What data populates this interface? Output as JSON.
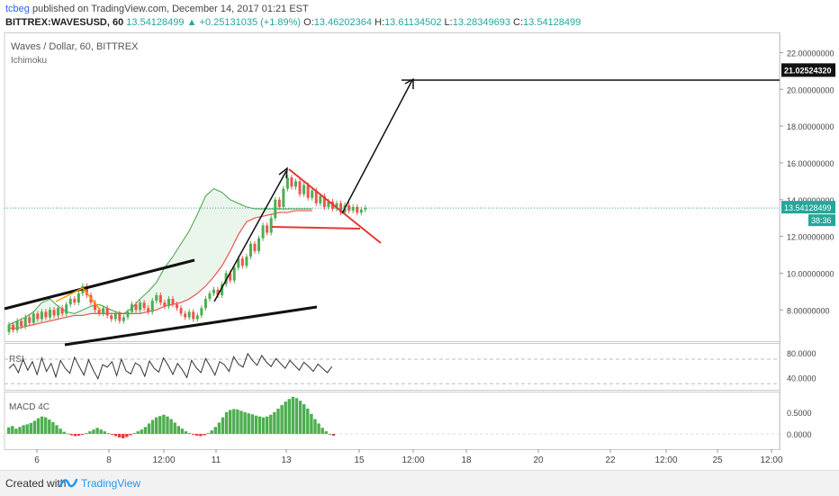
{
  "header": {
    "publisher_user": "tcbeg",
    "publisher_text": " published on TradingView.com, December 14, 2017 01:21 EST",
    "symbol": "BITTREX:WAVESUSD, 60",
    "last": "13.54128499",
    "change": "+0.25131035 (+1.89%)",
    "o_label": "O:",
    "o_value": "13.46202364",
    "h_label": "H:",
    "h_value": "13.61134502",
    "l_label": "L:",
    "l_value": "13.28349693",
    "c_label": "C:",
    "c_value": "13.54128499"
  },
  "chart_title": "Waves / Dollar, 60, BITTREX",
  "indicator": "Ichimoku",
  "rsi_label": "RSI",
  "macd_label": "MACD 4C",
  "footer": {
    "created": "Created with",
    "brand": "TradingView"
  },
  "colors": {
    "up": "#26a69a",
    "candle_up": "#4caf50",
    "candle_down": "#ef5350",
    "cloud_fill": "#e8f5e9",
    "kijun": "#ef5350",
    "tenkan": "#43a047",
    "triangle": "#e53935",
    "price_line": "#26a69a",
    "macd_up": "#4caf50",
    "macd_down": "#e53935"
  },
  "chart_data": {
    "type": "candlestick",
    "price_axis": {
      "ticks": [
        "22.00000000",
        "20.00000000",
        "18.00000000",
        "16.00000000",
        "14.00000000",
        "12.00000000",
        "10.00000000",
        "8.00000000"
      ],
      "range": [
        6.3,
        23.1
      ],
      "current_price": "13.54128499",
      "current_price_value": 13.54128499,
      "countdown": "38:36",
      "target_label": "21.02524320",
      "target_value": 21.0252432
    },
    "rsi_axis": {
      "ticks": [
        "80.0000",
        "40.0000"
      ],
      "range": [
        20,
        95
      ],
      "levels": [
        70,
        30
      ]
    },
    "macd_axis": {
      "ticks": [
        "0.5000",
        "0.0000"
      ],
      "range": [
        -0.35,
        0.95
      ]
    },
    "time_axis": {
      "ticks": [
        "6",
        "8",
        "12:00",
        "11",
        "13",
        "15",
        "12:00",
        "18",
        "20",
        "22",
        "12:00",
        "25",
        "12:00"
      ],
      "index_range": [
        -4,
        210
      ]
    },
    "candles_x0": 0,
    "candles": [
      [
        6.8,
        7.2
      ],
      [
        7.2,
        6.9
      ],
      [
        6.9,
        7.4
      ],
      [
        7.4,
        7.1
      ],
      [
        7.1,
        7.6
      ],
      [
        7.6,
        7.3
      ],
      [
        7.3,
        7.8
      ],
      [
        7.8,
        7.5
      ],
      [
        7.5,
        7.9
      ],
      [
        7.9,
        7.6
      ],
      [
        7.6,
        8.0
      ],
      [
        8.0,
        7.7
      ],
      [
        7.7,
        8.1
      ],
      [
        8.1,
        7.8
      ],
      [
        7.8,
        8.3
      ],
      [
        8.3,
        8.6
      ],
      [
        8.6,
        8.4
      ],
      [
        8.4,
        8.9
      ],
      [
        8.9,
        9.3
      ],
      [
        9.3,
        8.8
      ],
      [
        8.8,
        8.4
      ],
      [
        8.4,
        8.0
      ],
      [
        8.0,
        7.8
      ],
      [
        7.8,
        8.1
      ],
      [
        8.1,
        7.7
      ],
      [
        7.7,
        7.5
      ],
      [
        7.5,
        7.8
      ],
      [
        7.8,
        7.4
      ],
      [
        7.4,
        7.6
      ],
      [
        7.6,
        7.9
      ],
      [
        7.9,
        8.3
      ],
      [
        8.3,
        8.0
      ],
      [
        8.0,
        8.4
      ],
      [
        8.4,
        8.1
      ],
      [
        8.1,
        7.9
      ],
      [
        7.9,
        8.5
      ],
      [
        8.5,
        8.8
      ],
      [
        8.8,
        8.4
      ],
      [
        8.4,
        8.2
      ],
      [
        8.2,
        8.6
      ],
      [
        8.6,
        8.3
      ],
      [
        8.3,
        8.1
      ],
      [
        8.1,
        7.8
      ],
      [
        7.8,
        7.6
      ],
      [
        7.6,
        7.9
      ],
      [
        7.9,
        7.5
      ],
      [
        7.5,
        7.7
      ],
      [
        7.7,
        8.1
      ],
      [
        8.1,
        8.6
      ],
      [
        8.6,
        8.9
      ],
      [
        8.9,
        9.1
      ],
      [
        9.1,
        8.8
      ],
      [
        8.8,
        9.4
      ],
      [
        9.4,
        10.0
      ],
      [
        10.0,
        9.6
      ],
      [
        9.6,
        10.3
      ],
      [
        10.3,
        10.8
      ],
      [
        10.8,
        10.4
      ],
      [
        10.4,
        10.9
      ],
      [
        10.9,
        11.6
      ],
      [
        11.6,
        11.2
      ],
      [
        11.2,
        11.9
      ],
      [
        11.9,
        12.6
      ],
      [
        12.6,
        12.2
      ],
      [
        12.2,
        13.0
      ],
      [
        13.0,
        14.0
      ],
      [
        14.0,
        13.6
      ],
      [
        13.6,
        14.6
      ],
      [
        14.6,
        15.2
      ],
      [
        15.2,
        14.7
      ],
      [
        14.7,
        15.0
      ],
      [
        15.0,
        14.3
      ],
      [
        14.3,
        14.8
      ],
      [
        14.8,
        14.1
      ],
      [
        14.1,
        14.5
      ],
      [
        14.5,
        13.8
      ],
      [
        13.8,
        14.2
      ],
      [
        14.2,
        13.6
      ],
      [
        13.6,
        13.9
      ],
      [
        13.9,
        13.5
      ],
      [
        13.5,
        13.8
      ],
      [
        13.8,
        13.3
      ],
      [
        13.3,
        13.7
      ],
      [
        13.7,
        13.4
      ],
      [
        13.4,
        13.6
      ],
      [
        13.6,
        13.29
      ],
      [
        13.29,
        13.46
      ],
      [
        13.46,
        13.54
      ]
    ],
    "kijun": [
      7.0,
      7.0,
      7.1,
      7.2,
      7.3,
      7.4,
      7.5,
      7.6,
      7.7,
      7.7,
      7.8,
      7.8,
      7.8,
      7.8,
      7.8,
      7.8,
      7.8,
      7.9,
      8.0,
      8.2,
      8.3,
      8.4,
      8.6,
      8.9,
      9.3,
      9.8,
      10.4,
      11.2,
      12.1,
      12.8,
      13.0,
      13.1,
      13.2,
      13.3,
      13.3,
      13.4,
      13.4,
      13.4
    ],
    "tenkan": [
      7.2,
      7.4,
      7.6,
      7.9,
      8.4,
      8.6,
      8.2,
      7.9,
      7.8,
      8.0,
      8.2,
      8.3,
      8.1,
      7.9,
      7.8,
      8.1,
      8.6,
      9.0,
      9.5,
      10.3,
      10.9,
      11.6,
      12.3,
      13.2,
      14.2,
      14.6,
      14.4,
      14.0,
      13.8,
      13.6,
      13.5,
      13.5,
      13.5,
      13.5,
      13.5,
      13.5,
      13.5,
      13.5
    ],
    "rsi": [
      55,
      62,
      48,
      70,
      52,
      66,
      45,
      72,
      50,
      63,
      41,
      68,
      55,
      47,
      73,
      58,
      44,
      69,
      52,
      38,
      61,
      57,
      66,
      43,
      70,
      51,
      46,
      64,
      59,
      42,
      67,
      55,
      49,
      72,
      60,
      45,
      63,
      53,
      40,
      68,
      56,
      48,
      71,
      58,
      44,
      66,
      61,
      50,
      74,
      62,
      57,
      79,
      68,
      60,
      76,
      65,
      58,
      71,
      63,
      55,
      68,
      60,
      52,
      65,
      58,
      50,
      62,
      55,
      48,
      58
    ],
    "macd": [
      0.15,
      0.18,
      0.12,
      0.16,
      0.2,
      0.22,
      0.25,
      0.3,
      0.36,
      0.4,
      0.38,
      0.33,
      0.27,
      0.2,
      0.12,
      0.05,
      0.01,
      -0.03,
      -0.05,
      -0.04,
      -0.02,
      0.02,
      0.06,
      0.1,
      0.14,
      0.1,
      0.06,
      0.02,
      -0.02,
      -0.05,
      -0.08,
      -0.1,
      -0.07,
      -0.03,
      0.02,
      0.06,
      0.1,
      0.16,
      0.24,
      0.32,
      0.38,
      0.41,
      0.44,
      0.4,
      0.34,
      0.26,
      0.18,
      0.12,
      0.06,
      0.02,
      -0.02,
      -0.04,
      -0.05,
      -0.03,
      0.02,
      0.08,
      0.16,
      0.26,
      0.38,
      0.5,
      0.55,
      0.57,
      0.56,
      0.53,
      0.5,
      0.47,
      0.45,
      0.42,
      0.4,
      0.38,
      0.4,
      0.44,
      0.5,
      0.58,
      0.66,
      0.74,
      0.8,
      0.85,
      0.82,
      0.76,
      0.68,
      0.58,
      0.46,
      0.34,
      0.24,
      0.14,
      0.06,
      0.0,
      -0.04
    ]
  }
}
